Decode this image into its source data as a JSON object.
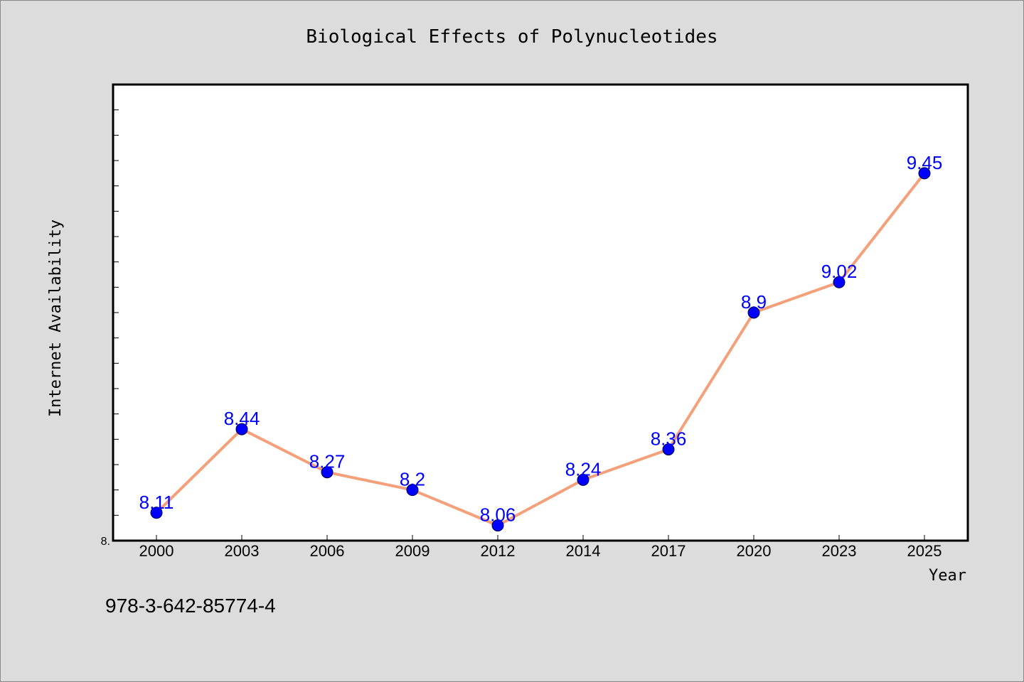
{
  "footnote": "978-3-642-85774-4",
  "colors": {
    "background": "#dcdcdc",
    "plot_background": "#ffffff",
    "line": "#f4a07a",
    "marker": "#0000ff",
    "data_label": "#0000ff"
  },
  "chart_data": {
    "type": "line",
    "title": "Biological Effects of Polynucleotides",
    "xlabel": "Year",
    "ylabel": "Internet Availability",
    "categories": [
      "2000",
      "2003",
      "2006",
      "2009",
      "2012",
      "2014",
      "2017",
      "2020",
      "2023",
      "2025"
    ],
    "series": [
      {
        "values": [
          8.11,
          8.44,
          8.27,
          8.2,
          8.06,
          8.24,
          8.36,
          8.9,
          9.02,
          9.45
        ],
        "labels": [
          "8.11",
          "8.44",
          "8.27",
          "8.2",
          "8.06",
          "8.24",
          "8.36",
          "8.9",
          "9.02",
          "9.45"
        ]
      }
    ],
    "ylim": [
      8.0,
      9.8
    ],
    "ytick_labels": [
      "8."
    ],
    "grid": false,
    "legend": "none"
  }
}
